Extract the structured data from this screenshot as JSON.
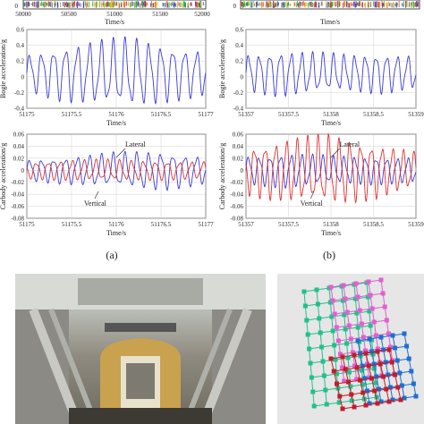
{
  "chart_data": [
    {
      "type": "line",
      "panel": "a-top",
      "xlabel": "Time/s",
      "ylabel": "",
      "xlim": [
        50000,
        52000
      ],
      "xticks": [
        "50000",
        "50500",
        "51000",
        "51500",
        "52000"
      ],
      "yticks": [
        "0"
      ],
      "series": [
        {
          "name": "",
          "color": "#2da84a"
        }
      ]
    },
    {
      "type": "line",
      "panel": "b-top",
      "xlabel": "Time/s",
      "ylabel": "",
      "yticks": [
        "0"
      ],
      "series": [
        {
          "name": "",
          "color": "#2da84a"
        }
      ]
    },
    {
      "type": "line",
      "panel": "a-mid",
      "xlabel": "Time/s",
      "ylabel": "Bogie acceleration/g",
      "xlim": [
        51175,
        51177
      ],
      "ylim": [
        -0.4,
        0.6
      ],
      "xticks": [
        "51175",
        "51175.5",
        "51176",
        "51176.5",
        "51177"
      ],
      "yticks": [
        "-0.4",
        "-0.2",
        "0",
        "0.2",
        "0.4",
        "0.6"
      ],
      "series": [
        {
          "name": "",
          "color": "#3a3ad8",
          "freq_hz": 7.5,
          "amplitude": [
            0.2,
            0.3,
            0.35,
            0.38,
            0.3,
            0.25
          ]
        }
      ]
    },
    {
      "type": "line",
      "panel": "b-mid",
      "xlabel": "Time/s",
      "ylabel": "Bogie acceleration/g",
      "xlim": [
        51357,
        51359
      ],
      "ylim": [
        -0.4,
        0.6
      ],
      "xticks": [
        "51357",
        "51357.5",
        "51358",
        "51358.5",
        "51359"
      ],
      "yticks": [
        "-0.4",
        "-0.2",
        "0",
        "0.2",
        "0.4",
        "0.6"
      ],
      "series": [
        {
          "name": "",
          "color": "#3a3ad8",
          "freq_hz": 8,
          "amplitude": [
            0.2,
            0.25,
            0.22,
            0.2,
            0.22,
            0.18
          ]
        }
      ]
    },
    {
      "type": "line",
      "panel": "a-bot",
      "xlabel": "Time/s",
      "ylabel": "Carbody acceleration/g",
      "xlim": [
        51175,
        51177
      ],
      "ylim": [
        -0.08,
        0.06
      ],
      "xticks": [
        "51175",
        "51175.5",
        "51176",
        "51176.5",
        "51177"
      ],
      "yticks": [
        "-0.08",
        "-0.06",
        "-0.04",
        "-0.02",
        "0",
        "0.02",
        "0.04",
        "0.06"
      ],
      "annotations": [
        "Lateral",
        "Vertical"
      ],
      "series": [
        {
          "name": "Lateral",
          "color": "#3a3ad8",
          "freq_hz": 7.5,
          "amplitude": [
            0.015,
            0.02,
            0.025,
            0.028,
            0.02
          ]
        },
        {
          "name": "Vertical",
          "color": "#e03030",
          "freq_hz": 7.5,
          "amplitude": [
            0.012,
            0.015,
            0.015,
            0.014,
            0.012
          ]
        }
      ]
    },
    {
      "type": "line",
      "panel": "b-bot",
      "xlabel": "Time/s",
      "ylabel": "Carbody acceleration/g",
      "xlim": [
        51357,
        51359
      ],
      "ylim": [
        -0.08,
        0.06
      ],
      "xticks": [
        "51357",
        "51357.5",
        "51358",
        "51358.5",
        "51359"
      ],
      "yticks": [
        "-0.08",
        "-0.06",
        "-0.04",
        "-0.02",
        "0",
        "0.02",
        "0.04",
        "0.06"
      ],
      "annotations": [
        "Lateral",
        "Vertical"
      ],
      "series": [
        {
          "name": "Lateral",
          "color": "#3a3ad8",
          "freq_hz": 8,
          "amplitude": [
            0.02,
            0.025,
            0.02,
            0.02,
            0.018
          ]
        },
        {
          "name": "Vertical",
          "color": "#e03030",
          "freq_hz": 8,
          "amplitude": [
            0.035,
            0.045,
            0.05,
            0.04,
            0.025
          ]
        }
      ]
    }
  ],
  "captions": {
    "a": "(a)",
    "b": "(b)"
  },
  "colors": {
    "axes": "#222222",
    "grid": "#d0d0d0",
    "blue": "#3a3ad8",
    "red": "#e03030",
    "green": "#2da84a"
  },
  "photos": {
    "left_icon": "test-rig-photo",
    "right_icon": "carbody-mesh-model"
  }
}
